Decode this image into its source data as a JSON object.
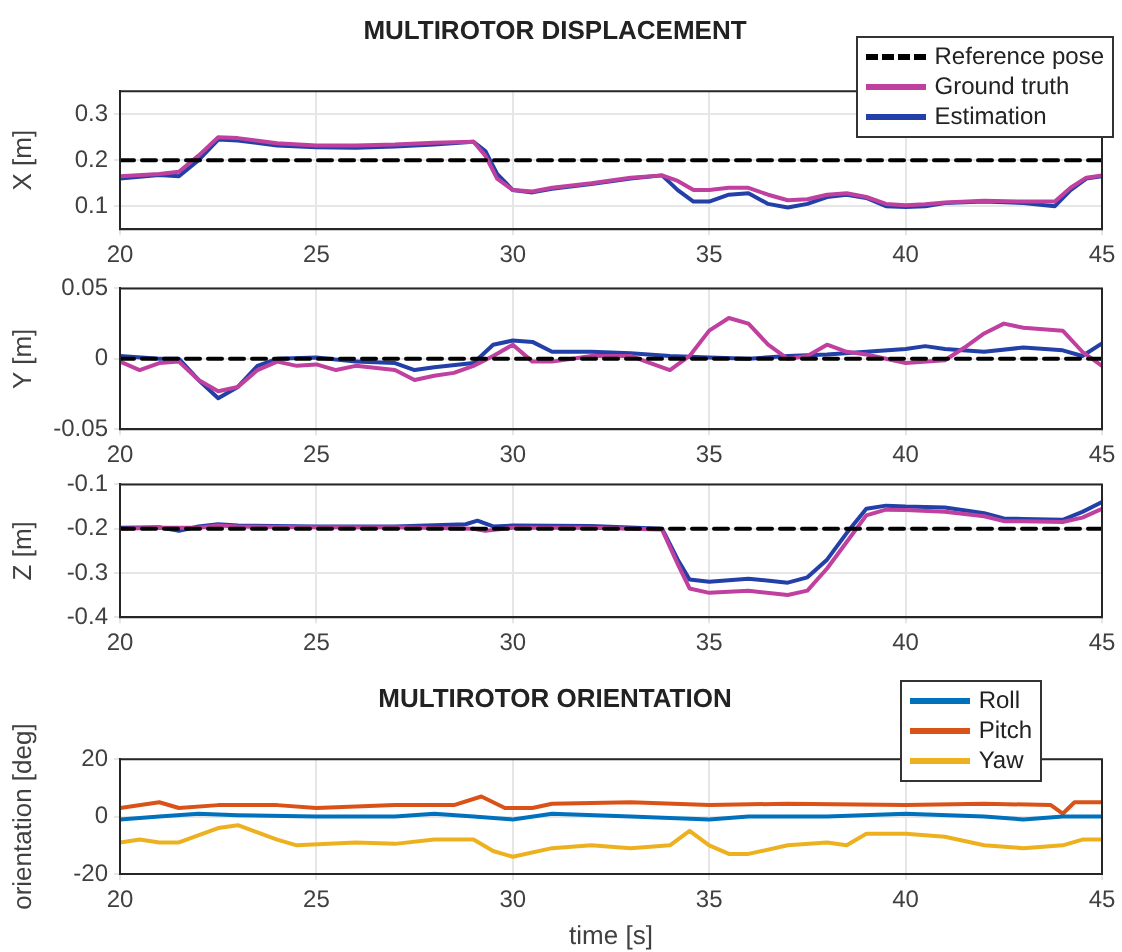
{
  "chart_data": [
    {
      "type": "line",
      "title": "MULTIROTOR DISPLACEMENT",
      "ylabel": "X [m]",
      "xlim": [
        20,
        45
      ],
      "xticks": [
        20,
        25,
        30,
        35,
        40,
        45
      ],
      "ylim": [
        0.05,
        0.35
      ],
      "yticks": [
        0.1,
        0.2,
        0.3
      ],
      "grid": true,
      "legend": "top right",
      "series": [
        {
          "name": "Reference pose",
          "color": "#000000",
          "line_style": "dashed",
          "x": [
            20,
            45
          ],
          "values": [
            0.2,
            0.2
          ]
        },
        {
          "name": "Ground truth",
          "color": "#c0409f",
          "x": [
            20,
            21,
            21.5,
            22,
            22.5,
            23,
            24,
            25,
            26,
            27,
            28,
            29,
            29.3,
            29.6,
            30,
            30.5,
            31,
            32,
            33,
            33.8,
            34.2,
            34.6,
            35,
            35.5,
            36,
            36.5,
            37,
            37.5,
            38,
            38.5,
            39,
            39.5,
            40,
            40.5,
            41,
            42,
            43,
            43.8,
            44.2,
            44.6,
            45
          ],
          "values": [
            0.165,
            0.17,
            0.175,
            0.21,
            0.25,
            0.248,
            0.237,
            0.232,
            0.232,
            0.234,
            0.238,
            0.24,
            0.21,
            0.16,
            0.135,
            0.132,
            0.14,
            0.15,
            0.162,
            0.167,
            0.155,
            0.135,
            0.135,
            0.14,
            0.14,
            0.125,
            0.113,
            0.115,
            0.125,
            0.128,
            0.12,
            0.105,
            0.102,
            0.104,
            0.108,
            0.112,
            0.11,
            0.11,
            0.14,
            0.162,
            0.167
          ]
        },
        {
          "name": "Estimation",
          "color": "#2340a8",
          "x": [
            20,
            21,
            21.5,
            22,
            22.5,
            23,
            24,
            25,
            26,
            27,
            28,
            29,
            29.3,
            29.6,
            30,
            30.5,
            31,
            32,
            33,
            33.8,
            34.2,
            34.6,
            35,
            35.5,
            36,
            36.5,
            37,
            37.5,
            38,
            38.5,
            39,
            39.5,
            40,
            40.5,
            41,
            42,
            43,
            43.8,
            44.2,
            44.6,
            45
          ],
          "values": [
            0.16,
            0.168,
            0.165,
            0.2,
            0.245,
            0.243,
            0.232,
            0.228,
            0.227,
            0.23,
            0.234,
            0.24,
            0.22,
            0.17,
            0.135,
            0.13,
            0.138,
            0.148,
            0.16,
            0.167,
            0.135,
            0.11,
            0.11,
            0.125,
            0.128,
            0.105,
            0.097,
            0.105,
            0.12,
            0.125,
            0.118,
            0.1,
            0.098,
            0.1,
            0.107,
            0.11,
            0.107,
            0.1,
            0.135,
            0.16,
            0.165
          ]
        }
      ]
    },
    {
      "type": "line",
      "ylabel": "Y [m]",
      "xlim": [
        20,
        45
      ],
      "xticks": [
        20,
        25,
        30,
        35,
        40,
        45
      ],
      "ylim": [
        -0.05,
        0.05
      ],
      "yticks": [
        -0.05,
        0,
        0.05
      ],
      "grid": true,
      "series": [
        {
          "color": "#000000",
          "line_style": "dashed",
          "x": [
            20,
            45
          ],
          "values": [
            0,
            0
          ]
        },
        {
          "color": "#c0409f",
          "x": [
            20,
            20.5,
            21,
            21.5,
            22,
            22.5,
            23,
            23.5,
            24,
            24.5,
            25,
            25.5,
            26,
            27,
            27.5,
            28,
            28.5,
            29,
            29.5,
            30,
            30.5,
            31,
            32,
            33,
            33.5,
            34,
            34.5,
            35,
            35.5,
            36,
            36.5,
            37,
            37.5,
            38,
            38.5,
            39,
            40,
            41,
            41.5,
            42,
            42.5,
            43,
            44,
            44.5,
            45
          ],
          "values": [
            -0.002,
            -0.008,
            -0.003,
            -0.002,
            -0.015,
            -0.023,
            -0.02,
            -0.008,
            -0.002,
            -0.005,
            -0.004,
            -0.008,
            -0.005,
            -0.008,
            -0.015,
            -0.012,
            -0.01,
            -0.005,
            0.002,
            0.01,
            -0.002,
            -0.002,
            0.002,
            0.002,
            -0.003,
            -0.008,
            0.002,
            0.02,
            0.029,
            0.025,
            0.01,
            0,
            0.002,
            0.01,
            0.005,
            0.003,
            -0.003,
            -0.001,
            0.008,
            0.018,
            0.025,
            0.022,
            0.02,
            0.005,
            -0.005
          ]
        },
        {
          "color": "#2340a8",
          "x": [
            20,
            21,
            21.5,
            22,
            22.5,
            23,
            23.5,
            24,
            25,
            26,
            27,
            27.5,
            28,
            29,
            29.5,
            30,
            30.5,
            31,
            32,
            33,
            34,
            35,
            36,
            37,
            38,
            39,
            40,
            40.5,
            41,
            42,
            43,
            44,
            44.5,
            45
          ],
          "values": [
            0.002,
            0,
            0,
            -0.015,
            -0.028,
            -0.02,
            -0.005,
            0,
            0.001,
            -0.002,
            -0.003,
            -0.008,
            -0.006,
            -0.003,
            0.01,
            0.013,
            0.012,
            0.005,
            0.005,
            0.004,
            0.002,
            0.001,
            0,
            0.002,
            0.003,
            0.005,
            0.007,
            0.009,
            0.007,
            0.005,
            0.008,
            0.006,
            0.002,
            0.011
          ]
        }
      ]
    },
    {
      "type": "line",
      "ylabel": "Z [m]",
      "xlim": [
        20,
        45
      ],
      "xticks": [
        20,
        25,
        30,
        35,
        40,
        45
      ],
      "ylim": [
        -0.4,
        -0.1
      ],
      "yticks": [
        -0.4,
        -0.3,
        -0.2,
        -0.1
      ],
      "grid": true,
      "series": [
        {
          "color": "#000000",
          "line_style": "dashed",
          "x": [
            20,
            45
          ],
          "values": [
            -0.2,
            -0.2
          ]
        },
        {
          "color": "#c0409f",
          "x": [
            20,
            21,
            22,
            22.5,
            23,
            25,
            27,
            29,
            29.3,
            30,
            32,
            33.8,
            34.2,
            34.5,
            35,
            36,
            37,
            37.5,
            38,
            38.5,
            39,
            39.5,
            40,
            41,
            42,
            42.5,
            43,
            44,
            44.5,
            45
          ],
          "values": [
            -0.2,
            -0.198,
            -0.198,
            -0.193,
            -0.195,
            -0.197,
            -0.197,
            -0.2,
            -0.205,
            -0.198,
            -0.198,
            -0.202,
            -0.28,
            -0.335,
            -0.345,
            -0.34,
            -0.35,
            -0.34,
            -0.29,
            -0.23,
            -0.17,
            -0.157,
            -0.158,
            -0.162,
            -0.172,
            -0.183,
            -0.183,
            -0.185,
            -0.175,
            -0.155
          ]
        },
        {
          "color": "#2340a8",
          "x": [
            20,
            21,
            21.5,
            22,
            22.5,
            23,
            25,
            27,
            28.8,
            29.1,
            29.5,
            30,
            32,
            33.8,
            34.2,
            34.5,
            35,
            36,
            37,
            37.5,
            38,
            38.5,
            39,
            39.5,
            40,
            41,
            42,
            42.5,
            43,
            44,
            44.5,
            45
          ],
          "values": [
            -0.198,
            -0.197,
            -0.205,
            -0.195,
            -0.19,
            -0.193,
            -0.195,
            -0.195,
            -0.19,
            -0.182,
            -0.195,
            -0.193,
            -0.194,
            -0.2,
            -0.27,
            -0.315,
            -0.32,
            -0.313,
            -0.322,
            -0.31,
            -0.27,
            -0.21,
            -0.155,
            -0.148,
            -0.15,
            -0.152,
            -0.165,
            -0.177,
            -0.178,
            -0.18,
            -0.162,
            -0.14
          ]
        }
      ]
    },
    {
      "type": "line",
      "title": "MULTIROTOR ORIENTATION",
      "xlabel": "time [s]",
      "ylabel": "orientation [deg]",
      "xlim": [
        20,
        45
      ],
      "xticks": [
        20,
        25,
        30,
        35,
        40,
        45
      ],
      "ylim": [
        -20,
        20
      ],
      "yticks": [
        -20,
        0,
        20
      ],
      "grid": true,
      "legend": "top right",
      "series": [
        {
          "name": "Roll",
          "color": "#0072bd",
          "x": [
            20,
            21,
            22,
            23,
            25,
            27,
            28,
            29,
            30,
            31,
            33,
            35,
            36,
            38,
            40,
            42,
            43,
            44,
            45
          ],
          "values": [
            -1,
            0,
            1,
            0.5,
            0,
            0,
            1,
            0,
            -1,
            1,
            0,
            -1,
            0,
            0,
            1,
            0,
            -1,
            0,
            0
          ]
        },
        {
          "name": "Pitch",
          "color": "#d95319",
          "x": [
            20,
            21,
            21.5,
            22.5,
            24,
            25,
            27,
            28.5,
            29.2,
            29.8,
            30.5,
            31,
            33,
            35,
            37,
            40,
            42,
            43.7,
            44,
            44.3,
            45
          ],
          "values": [
            3,
            5,
            3,
            4,
            4,
            3,
            4,
            4,
            7,
            3,
            3,
            4.5,
            5,
            4,
            4.5,
            4,
            4.5,
            4,
            1,
            5,
            5
          ]
        },
        {
          "name": "Yaw",
          "color": "#edb120",
          "x": [
            20,
            20.5,
            21,
            21.5,
            22.5,
            23,
            24,
            24.5,
            26,
            27,
            28,
            29,
            29.5,
            30,
            31,
            32,
            33,
            34,
            34.5,
            35,
            35.5,
            36,
            37,
            38,
            38.5,
            39,
            40,
            41,
            42,
            43,
            44,
            44.5,
            45
          ],
          "values": [
            -9,
            -8,
            -9,
            -9,
            -4,
            -3,
            -8,
            -10,
            -9,
            -9.5,
            -8,
            -8,
            -12,
            -14,
            -11,
            -10,
            -11,
            -10,
            -5,
            -10,
            -13,
            -13,
            -10,
            -9,
            -10,
            -6,
            -6,
            -7,
            -10,
            -11,
            -10,
            -8,
            -8
          ]
        }
      ]
    }
  ]
}
